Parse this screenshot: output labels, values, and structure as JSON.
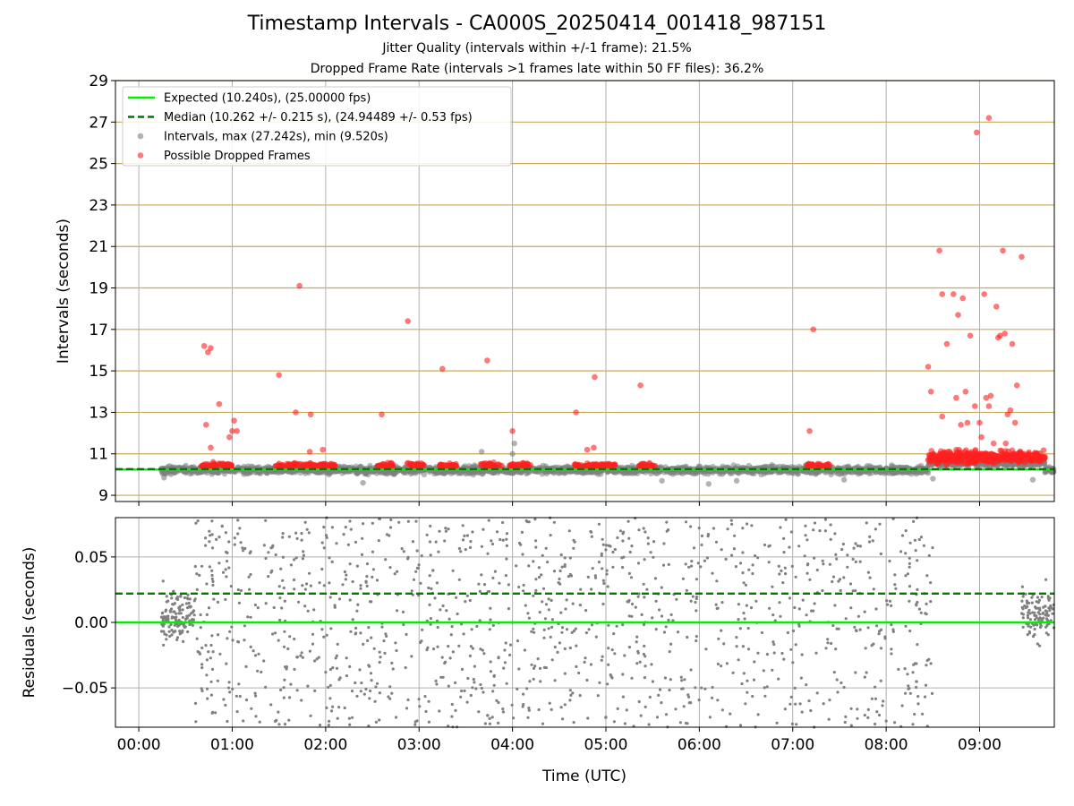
{
  "title": "Timestamp Intervals - CA000S_20250414_001418_987151",
  "subtitle_jitter": "Jitter Quality (intervals within +/-1 frame): 21.5%",
  "subtitle_dropped": "Dropped Frame Rate (intervals >1 frames late within 50 FF files): 36.2%",
  "colors": {
    "expected": "#00ee00",
    "median": "#007a00",
    "intervals": "#808080",
    "dropped": "#ff2020",
    "hgrid_top": "#c8aa5a",
    "grid": "#b0b0b0"
  },
  "chart_data": [
    {
      "type": "scatter",
      "panel": "intervals",
      "xlabel": "Time (UTC)",
      "ylabel": "Intervals (seconds)",
      "ylim": [
        8.7,
        29
      ],
      "yticks": [
        9,
        11,
        13,
        15,
        17,
        19,
        21,
        23,
        25,
        27,
        29
      ],
      "ytick_labels": [
        "9",
        "11",
        "13",
        "15",
        "17",
        "19",
        "21",
        "23",
        "25",
        "27",
        "29"
      ],
      "xlim_hours": [
        -0.25,
        9.8
      ],
      "xticks_hours": [
        0,
        1,
        2,
        3,
        4,
        5,
        6,
        7,
        8,
        9
      ],
      "xtick_labels": [
        "00:00",
        "01:00",
        "02:00",
        "03:00",
        "04:00",
        "05:00",
        "06:00",
        "07:00",
        "08:00",
        "09:00"
      ],
      "grid": true,
      "legend_position": "top-left",
      "legend": [
        {
          "label": "Expected (10.240s), (25.00000 fps)",
          "style": "line"
        },
        {
          "label": "Median (10.262 +/- 0.215 s), (24.94489 +/- 0.53 fps)",
          "style": "dashed"
        },
        {
          "label": "Intervals, max (27.242s), min (9.520s)",
          "style": "marker-gray"
        },
        {
          "label": "Possible Dropped Frames",
          "style": "marker-red"
        }
      ],
      "expected_value": 10.24,
      "median_value": 10.262,
      "data_start_hour": 0.24,
      "data_end_hour": 9.8,
      "band_range": [
        9.6,
        10.8
      ],
      "dropped_clusters": [
        [
          0.67,
          1.02
        ],
        [
          1.45,
          2.1
        ],
        [
          2.55,
          2.72
        ],
        [
          2.85,
          3.05
        ],
        [
          3.2,
          3.4
        ],
        [
          3.65,
          3.9
        ],
        [
          3.95,
          4.2
        ],
        [
          4.65,
          5.1
        ],
        [
          5.35,
          5.55
        ],
        [
          7.15,
          7.4
        ],
        [
          8.45,
          9.7
        ]
      ],
      "dropped_outliers": [
        [
          0.7,
          16.2
        ],
        [
          0.72,
          12.4
        ],
        [
          0.74,
          15.9
        ],
        [
          0.77,
          16.1
        ],
        [
          0.77,
          11.3
        ],
        [
          0.86,
          13.4
        ],
        [
          0.97,
          11.8
        ],
        [
          1.0,
          12.1
        ],
        [
          1.02,
          12.6
        ],
        [
          1.05,
          12.1
        ],
        [
          1.5,
          14.8
        ],
        [
          1.68,
          13.0
        ],
        [
          1.72,
          19.1
        ],
        [
          1.84,
          12.9
        ],
        [
          1.83,
          11.1
        ],
        [
          1.97,
          11.2
        ],
        [
          2.6,
          12.9
        ],
        [
          2.88,
          17.4
        ],
        [
          3.25,
          15.1
        ],
        [
          3.73,
          15.5
        ],
        [
          4.0,
          12.1
        ],
        [
          4.68,
          13.0
        ],
        [
          4.8,
          11.2
        ],
        [
          4.87,
          11.3
        ],
        [
          4.88,
          14.7
        ],
        [
          5.37,
          14.3
        ],
        [
          7.18,
          12.1
        ],
        [
          7.22,
          17.0
        ],
        [
          8.45,
          15.2
        ],
        [
          8.48,
          14.0
        ],
        [
          8.57,
          20.8
        ],
        [
          8.6,
          12.8
        ],
        [
          8.6,
          18.7
        ],
        [
          8.65,
          16.3
        ],
        [
          8.72,
          18.7
        ],
        [
          8.75,
          13.7
        ],
        [
          8.77,
          17.7
        ],
        [
          8.82,
          18.5
        ],
        [
          8.85,
          14.0
        ],
        [
          8.9,
          16.7
        ],
        [
          8.95,
          13.3
        ],
        [
          8.97,
          26.5
        ],
        [
          9.0,
          12.5
        ],
        [
          9.02,
          11.8
        ],
        [
          9.05,
          18.7
        ],
        [
          9.07,
          13.7
        ],
        [
          9.1,
          27.2
        ],
        [
          9.1,
          13.3
        ],
        [
          9.12,
          13.8
        ],
        [
          9.18,
          18.1
        ],
        [
          9.2,
          16.6
        ],
        [
          9.22,
          16.7
        ],
        [
          9.25,
          20.8
        ],
        [
          9.27,
          16.8
        ],
        [
          9.3,
          12.9
        ],
        [
          9.33,
          13.1
        ],
        [
          9.35,
          16.3
        ],
        [
          9.38,
          12.5
        ],
        [
          9.4,
          14.3
        ],
        [
          9.45,
          20.5
        ],
        [
          8.8,
          12.4
        ],
        [
          8.87,
          12.5
        ],
        [
          9.15,
          11.5
        ],
        [
          9.28,
          11.5
        ]
      ],
      "gray_outliers": [
        [
          0.27,
          9.85
        ],
        [
          2.4,
          9.6
        ],
        [
          3.67,
          11.1
        ],
        [
          4.02,
          11.5
        ],
        [
          4.0,
          11.0
        ],
        [
          5.6,
          9.7
        ],
        [
          6.1,
          9.55
        ],
        [
          6.4,
          9.7
        ],
        [
          7.55,
          9.75
        ],
        [
          8.5,
          9.8
        ],
        [
          9.57,
          9.75
        ]
      ]
    },
    {
      "type": "scatter",
      "panel": "residuals",
      "xlabel": "Time (UTC)",
      "ylabel": "Residuals (seconds)",
      "ylim": [
        -0.08,
        0.08
      ],
      "yticks": [
        -0.05,
        0.0,
        0.05
      ],
      "ytick_labels": [
        "−0.05",
        "0.00",
        "0.05"
      ],
      "expected_value": 0.0,
      "median_value": 0.022,
      "segments": [
        [
          0.24,
          0.6
        ],
        [
          0.6,
          8.5
        ],
        [
          9.45,
          9.8
        ]
      ],
      "grid": true
    }
  ]
}
